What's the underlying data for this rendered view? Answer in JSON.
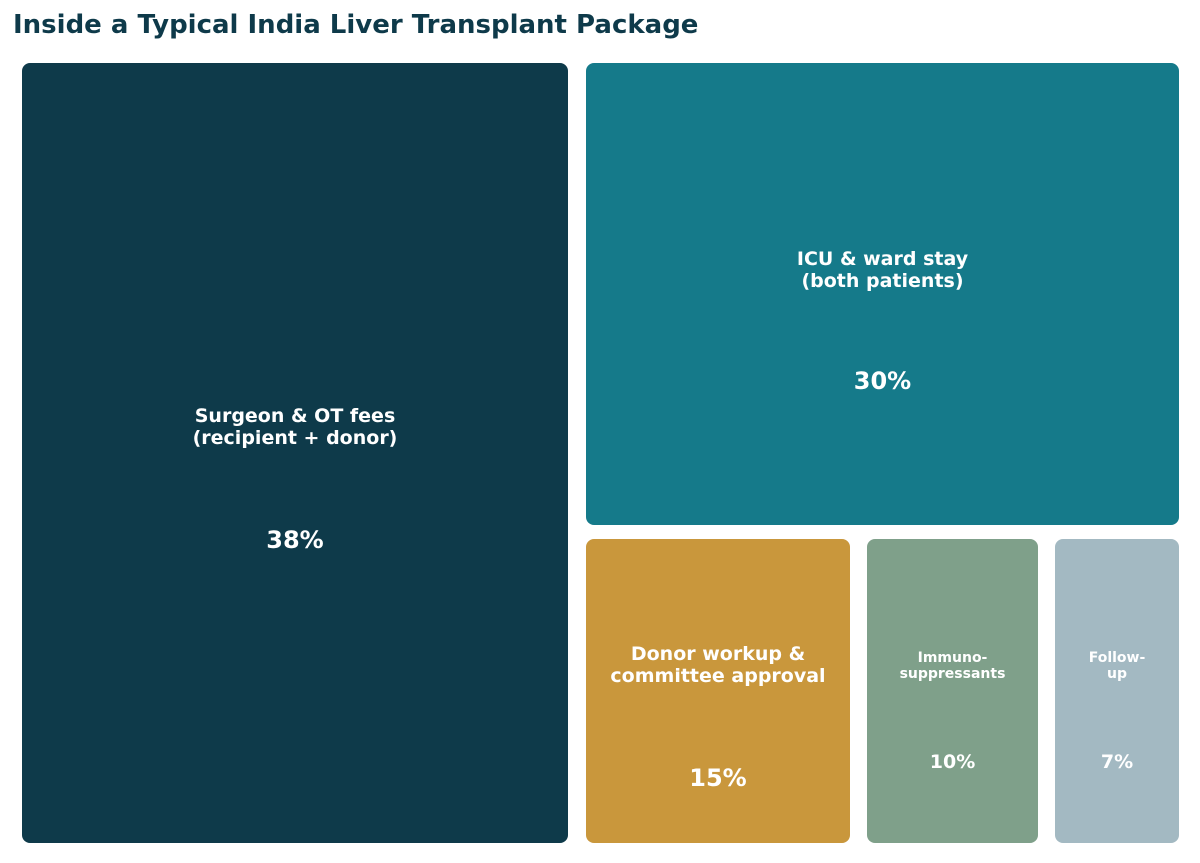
{
  "chart_data": {
    "type": "treemap",
    "title": "Inside a Typical India Liver Transplant Package",
    "unit": "%",
    "items": [
      {
        "label": "Surgeon & OT fees\n(recipient + donor)",
        "value": 38,
        "value_label": "38%",
        "color": "#0e3a4a"
      },
      {
        "label": "ICU & ward stay\n(both patients)",
        "value": 30,
        "value_label": "30%",
        "color": "#157a8a"
      },
      {
        "label": "Donor workup &\ncommittee approval",
        "value": 15,
        "value_label": "15%",
        "color": "#c9973c"
      },
      {
        "label": "Immuno-\nsuppressants",
        "value": 10,
        "value_label": "10%",
        "color": "#7fa08a"
      },
      {
        "label": "Follow-\nup",
        "value": 7,
        "value_label": "7%",
        "color": "#a3b9c2"
      }
    ]
  }
}
